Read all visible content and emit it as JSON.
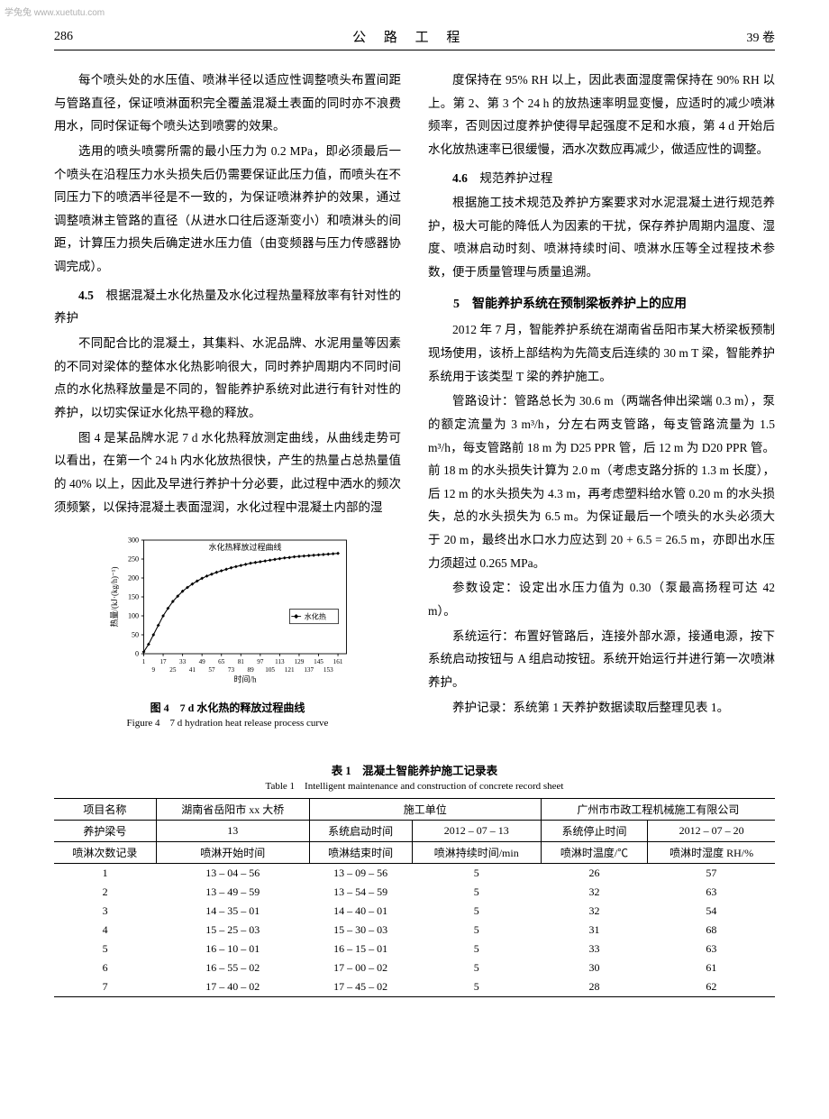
{
  "watermark": "学兔兔 www.xuetutu.com",
  "header": {
    "page_num": "286",
    "journal_title": "公 路 工 程",
    "volume": "39 卷"
  },
  "left_column": {
    "para1": "每个喷头处的水压值、喷淋半径以适应性调整喷头布置间距与管路直径，保证喷淋面积完全覆盖混凝土表面的同时亦不浪费用水，同时保证每个喷头达到喷雾的效果。",
    "para2": "选用的喷头喷雾所需的最小压力为 0.2 MPa，即必须最后一个喷头在沿程压力水头损失后仍需要保证此压力值，而喷头在不同压力下的喷洒半径是不一致的，为保证喷淋养护的效果，通过调整喷淋主管路的直径（从进水口往后逐渐变小）和喷淋头的间距，计算压力损失后确定进水压力值（由变频器与压力传感器协调完成）。",
    "subsection45_num": "4.5",
    "subsection45_title": "根据混凝土水化热量及水化过程热量释放率有针对性的养护",
    "para3": "不同配合比的混凝土，其集料、水泥品牌、水泥用量等因素的不同对梁体的整体水化热影响很大，同时养护周期内不同时间点的水化热释放量是不同的，智能养护系统对此进行有针对性的养护，以切实保证水化热平稳的释放。",
    "para4": "图 4 是某品牌水泥 7 d 水化热释放测定曲线，从曲线走势可以看出，在第一个 24 h 内水化放热很快，产生的热量占总热量值的 40% 以上，因此及早进行养护十分必要，此过程中洒水的频次须频繁，以保持混凝土表面湿润，水化过程中混凝土内部的湿"
  },
  "chart": {
    "type": "line",
    "title_inside": "水化热释放过程曲线",
    "legend": "水化热",
    "ylabel": "热量/(kJ·(kg/h)⁻¹)",
    "xlabel": "时间/h",
    "ylim": [
      0,
      300
    ],
    "ytick_step": 50,
    "yticks": [
      0,
      50,
      100,
      150,
      200,
      250,
      300
    ],
    "xticks_top": [
      1,
      17,
      33,
      49,
      65,
      81,
      97,
      113,
      129,
      145,
      161
    ],
    "xticks_bottom": [
      9,
      25,
      41,
      57,
      73,
      89,
      105,
      121,
      137,
      153
    ],
    "x_values": [
      1,
      5,
      9,
      13,
      17,
      21,
      25,
      29,
      33,
      37,
      41,
      45,
      49,
      53,
      57,
      61,
      65,
      69,
      73,
      77,
      81,
      85,
      89,
      93,
      97,
      101,
      105,
      109,
      113,
      117,
      121,
      125,
      129,
      133,
      137,
      141,
      145,
      149,
      153,
      157,
      161
    ],
    "y_values": [
      5,
      25,
      50,
      75,
      100,
      120,
      138,
      152,
      165,
      175,
      184,
      192,
      199,
      205,
      210,
      215,
      219,
      223,
      227,
      230,
      233,
      236,
      239,
      241,
      243,
      245,
      247,
      249,
      251,
      253,
      254,
      256,
      257,
      258,
      259,
      260,
      261,
      262,
      263,
      264,
      265
    ],
    "line_color": "#000000",
    "caption_cn": "图 4　7 d 水化热的释放过程曲线",
    "caption_en": "Figure 4　7 d hydration heat release process curve"
  },
  "right_column": {
    "para1": "度保持在 95% RH 以上，因此表面湿度需保持在 90% RH 以上。第 2、第 3 个 24 h 的放热速率明显变慢，应适时的减少喷淋频率，否则因过度养护使得早起强度不足和水痕，第 4 d 开始后水化放热速率已很缓慢，洒水次数应再减少，做适应性的调整。",
    "subsection46_num": "4.6",
    "subsection46_title": "规范养护过程",
    "para2": "根据施工技术规范及养护方案要求对水泥混凝土进行规范养护，极大可能的降低人为因素的干扰，保存养护周期内温度、湿度、喷淋启动时刻、喷淋持续时间、喷淋水压等全过程技术参数，便于质量管理与质量追溯。",
    "section5_num": "5",
    "section5_title": "智能养护系统在预制梁板养护上的应用",
    "para3": "2012 年 7 月，智能养护系统在湖南省岳阳市某大桥梁板预制现场使用，该桥上部结构为先简支后连续的 30 m T 梁，智能养护系统用于该类型 T 梁的养护施工。",
    "para4": "管路设计：管路总长为 30.6 m（两端各伸出梁端 0.3 m），泵的额定流量为 3 m³/h，分左右两支管路，每支管路流量为 1.5 m³/h，每支管路前 18 m 为 D25 PPR 管，后 12 m 为 D20 PPR 管。前 18 m 的水头损失计算为 2.0 m（考虑支路分拆的 1.3 m 长度），后 12 m 的水头损失为 4.3 m，再考虑塑料给水管 0.20 m 的水头损失，总的水头损失为 6.5 m。为保证最后一个喷头的水头必须大于 20 m，最终出水口水力应达到 20 + 6.5 = 26.5 m，亦即出水压力须超过 0.265 MPa。",
    "para5": "参数设定：设定出水压力值为 0.30（泵最高扬程可达 42 m）。",
    "para6": "系统运行：布置好管路后，连接外部水源，接通电源，按下系统启动按钮与 A 组启动按钮。系统开始运行并进行第一次喷淋养护。",
    "para7": "养护记录：系统第 1 天养护数据读取后整理见表 1。"
  },
  "table": {
    "caption_cn": "表 1　混凝土智能养护施工记录表",
    "caption_en": "Table 1　Intelligent maintenance and construction of concrete record sheet",
    "header_row1": {
      "c1": "项目名称",
      "c2": "湖南省岳阳市 xx 大桥",
      "c3": "施工单位",
      "c4": "广州市市政工程机械施工有限公司"
    },
    "header_row2": {
      "c1": "养护梁号",
      "c2": "13",
      "c3": "系统启动时间",
      "c4": "2012 – 07 – 13",
      "c5": "系统停止时间",
      "c6": "2012 – 07 – 20"
    },
    "columns": [
      "喷淋次数记录",
      "喷淋开始时间",
      "喷淋结束时间",
      "喷淋持续时间/min",
      "喷淋时温度/℃",
      "喷淋时湿度 RH/%"
    ],
    "rows": [
      [
        "1",
        "13 – 04 – 56",
        "13 – 09 – 56",
        "5",
        "26",
        "57"
      ],
      [
        "2",
        "13 – 49 – 59",
        "13 – 54 – 59",
        "5",
        "32",
        "63"
      ],
      [
        "3",
        "14 – 35 – 01",
        "14 – 40 – 01",
        "5",
        "32",
        "54"
      ],
      [
        "4",
        "15 – 25 – 03",
        "15 – 30 – 03",
        "5",
        "31",
        "68"
      ],
      [
        "5",
        "16 – 10 – 01",
        "16 – 15 – 01",
        "5",
        "33",
        "63"
      ],
      [
        "6",
        "16 – 55 – 02",
        "17 – 00 – 02",
        "5",
        "30",
        "61"
      ],
      [
        "7",
        "17 – 40 – 02",
        "17 – 45 – 02",
        "5",
        "28",
        "62"
      ]
    ]
  }
}
